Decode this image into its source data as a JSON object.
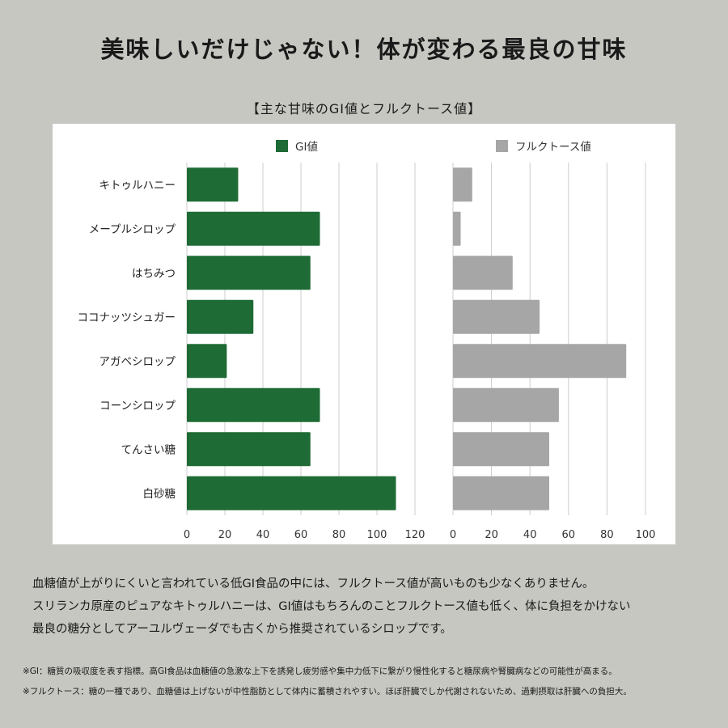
{
  "headline": "美味しいだけじゃない！体が変わる最良の甘味",
  "chart_title": "【主な甘味のGI値とフルクトース値】",
  "colors": {
    "background": "#c6c7c1",
    "gi_bar": "#1e6b35",
    "fructose_bar": "#a6a6a6",
    "gridline": "#cccccc"
  },
  "chart_data": [
    {
      "type": "bar",
      "orientation": "horizontal",
      "series_name": "GI値",
      "color": "#1e6b35",
      "categories": [
        "キトゥルハニー",
        "メープルシロップ",
        "はちみつ",
        "ココナッツシュガー",
        "アガベシロップ",
        "コーンシロップ",
        "てんさい糖",
        "白砂糖"
      ],
      "values": [
        27,
        70,
        65,
        35,
        21,
        70,
        65,
        110
      ],
      "xlim": [
        0,
        120
      ],
      "ticks": [
        0,
        20,
        40,
        60,
        80,
        100,
        120
      ],
      "grid": true
    },
    {
      "type": "bar",
      "orientation": "horizontal",
      "series_name": "フルクトース値",
      "color": "#a6a6a6",
      "categories": [
        "キトゥルハニー",
        "メープルシロップ",
        "はちみつ",
        "ココナッツシュガー",
        "アガベシロップ",
        "コーンシロップ",
        "てんさい糖",
        "白砂糖"
      ],
      "values": [
        10,
        4,
        31,
        45,
        90,
        55,
        50,
        50
      ],
      "xlim": [
        0,
        100
      ],
      "ticks": [
        0,
        20,
        40,
        60,
        80,
        100
      ],
      "grid": true
    }
  ],
  "description": [
    "血糖値が上がりにくいと言われている低GI食品の中には、フルクトース値が高いものも少なくありません。",
    "スリランカ原産のピュアなキトゥルハニーは、GI値はもちろんのことフルクトース値も低く、体に負担をかけない",
    "最良の糖分としてアーユルヴェーダでも古くから推奨されているシロップです。"
  ],
  "notes": [
    "※GI：糖質の吸収度を表す指標。高GI食品は血糖値の急激な上下を誘発し疲労感や集中力低下に繋がり慢性化すると糖尿病や腎臓病などの可能性が高まる。",
    "※フルクトース：糖の一種であり、血糖値は上げないが中性脂肪として体内に蓄積されやすい。ほぼ肝臓でしか代謝されないため、過剰摂取は肝臓への負担大。"
  ]
}
